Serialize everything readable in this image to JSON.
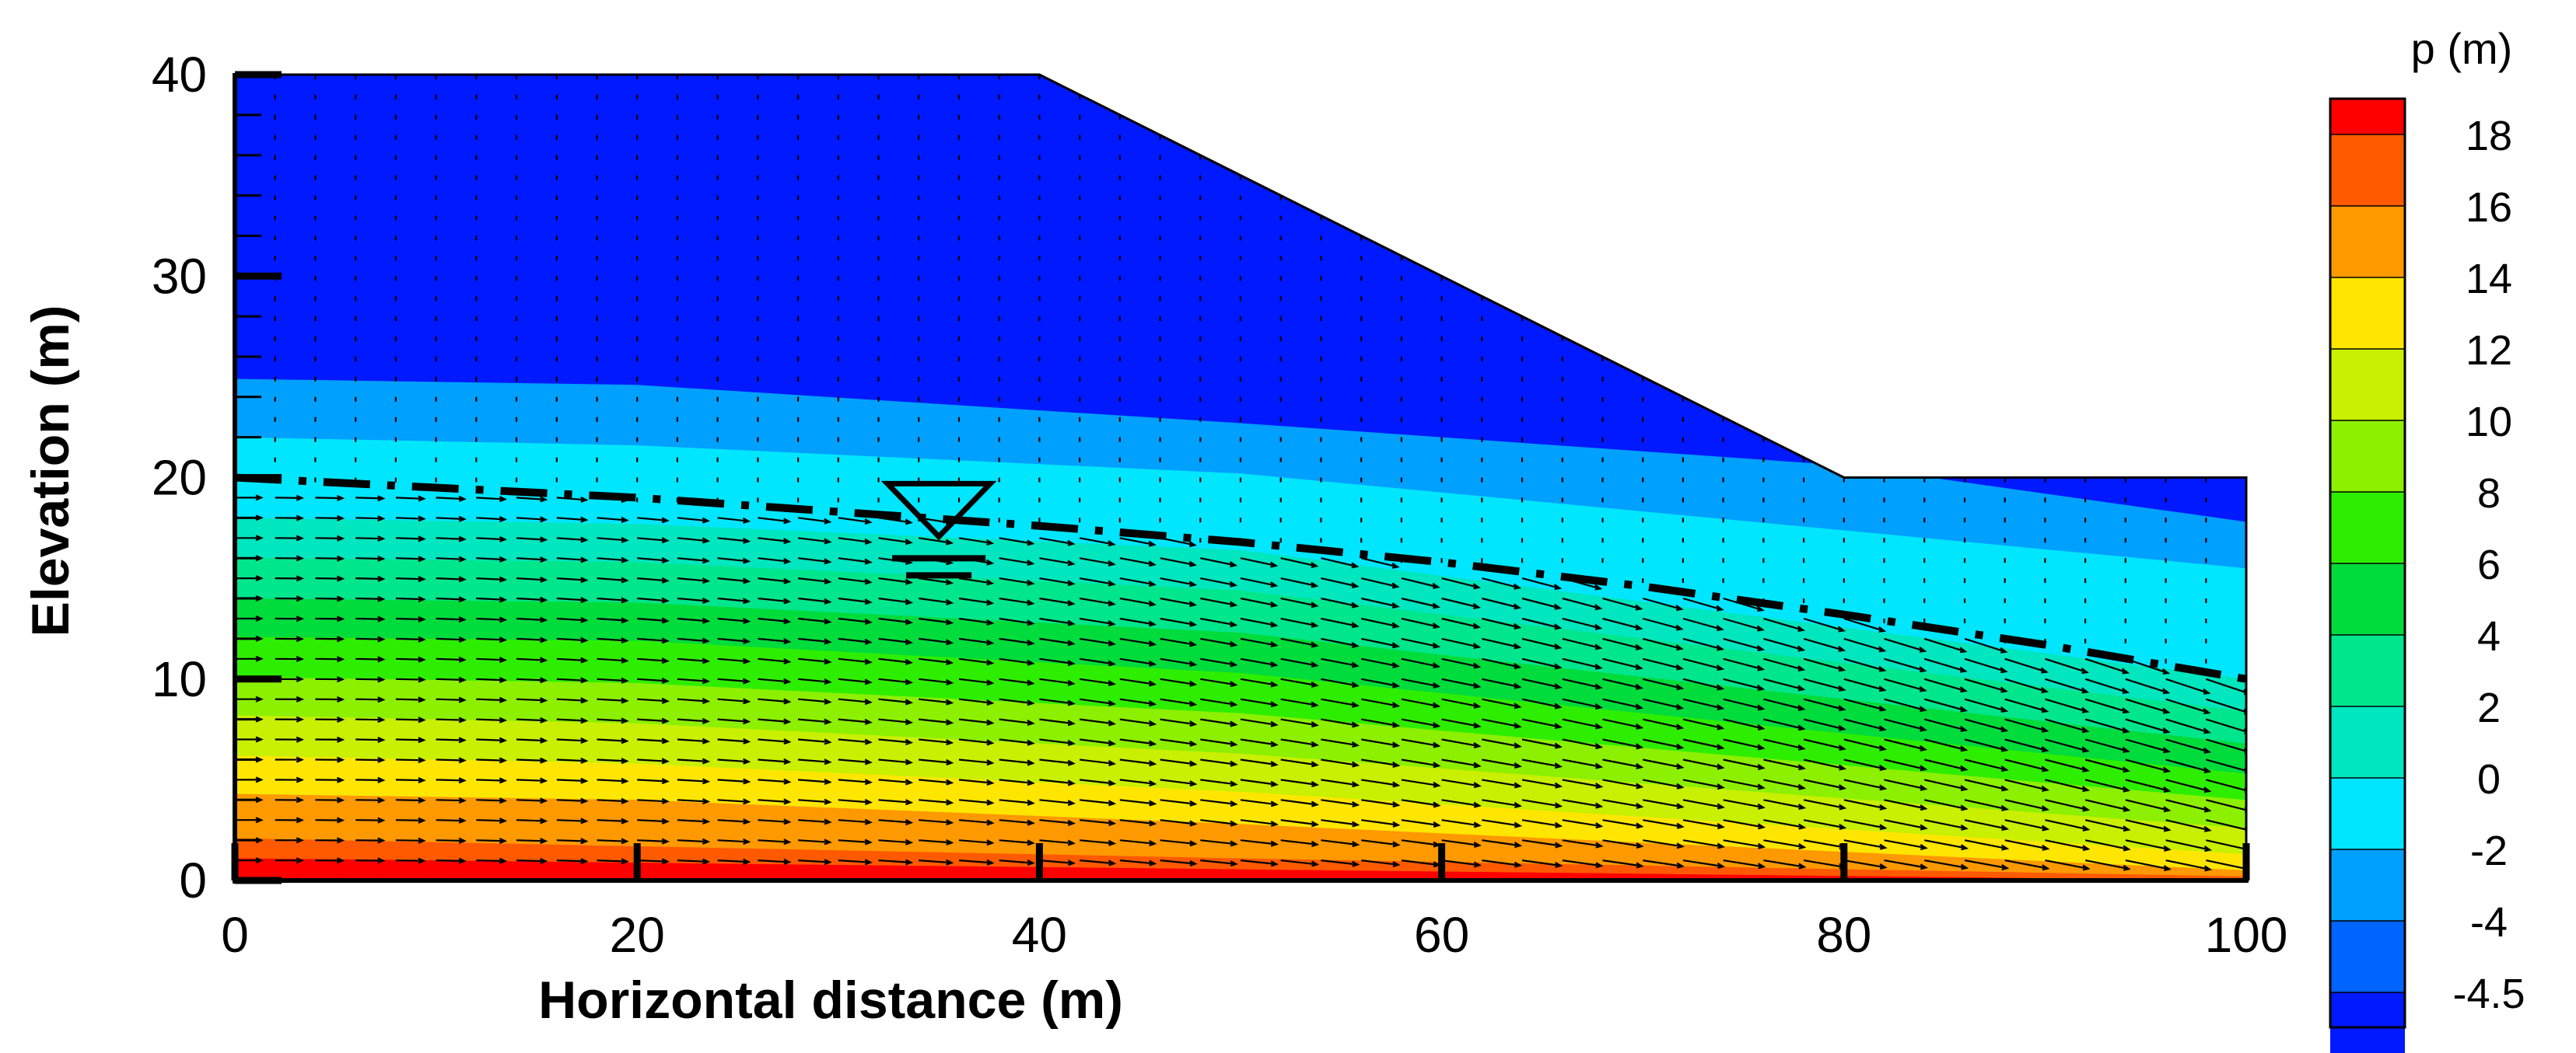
{
  "chart_data": {
    "type": "contour",
    "xlabel": "Horizontal distance (m)",
    "ylabel": "Elevation (m)",
    "xlim": [
      0,
      100
    ],
    "ylim": [
      0,
      40
    ],
    "xticks": [
      0,
      20,
      40,
      60,
      80,
      100
    ],
    "yticks": [
      0,
      10,
      20,
      30,
      40
    ],
    "domain_outline": [
      [
        0,
        0
      ],
      [
        100,
        0
      ],
      [
        100,
        20
      ],
      [
        80,
        20
      ],
      [
        40,
        40
      ],
      [
        0,
        40
      ]
    ],
    "water_table": [
      [
        0,
        20
      ],
      [
        10,
        19.5
      ],
      [
        20,
        19
      ],
      [
        30,
        18.3
      ],
      [
        40,
        17.6
      ],
      [
        50,
        16.8
      ],
      [
        60,
        15.8
      ],
      [
        70,
        14.6
      ],
      [
        80,
        13.2
      ],
      [
        90,
        11.7
      ],
      [
        100,
        10
      ]
    ],
    "water_table_symbol": {
      "x": 35,
      "y": 19
    },
    "colorbar": {
      "title": "p (m)",
      "position": "right",
      "tick_labels": [
        "18",
        "16",
        "14",
        "12",
        "10",
        "8",
        "6",
        "4",
        "2",
        "0",
        "-2",
        "-4",
        "-4.5"
      ],
      "tick_values": [
        18,
        16,
        14,
        12,
        10,
        8,
        6,
        4,
        2,
        0,
        -2,
        -4,
        -4.5
      ],
      "bands": [
        {
          "from": 18,
          "to": 19,
          "color": "#ff0000"
        },
        {
          "from": 16,
          "to": 18,
          "color": "#ff5a00"
        },
        {
          "from": 14,
          "to": 16,
          "color": "#ff9900"
        },
        {
          "from": 12,
          "to": 14,
          "color": "#ffe600"
        },
        {
          "from": 10,
          "to": 12,
          "color": "#c8f000"
        },
        {
          "from": 8,
          "to": 10,
          "color": "#8cf000"
        },
        {
          "from": 6,
          "to": 8,
          "color": "#2eee00"
        },
        {
          "from": 4,
          "to": 6,
          "color": "#00dc3c"
        },
        {
          "from": 2,
          "to": 4,
          "color": "#00e68c"
        },
        {
          "from": 0,
          "to": 2,
          "color": "#00e6be"
        },
        {
          "from": -2,
          "to": 0,
          "color": "#00e6ff"
        },
        {
          "from": -4,
          "to": -2,
          "color": "#00a0ff"
        },
        {
          "from": -4.5,
          "to": -4,
          "color": "#0064ff"
        },
        {
          "from": -5,
          "to": -4.5,
          "color": "#0019ff"
        }
      ]
    },
    "pressure_contours": [
      {
        "level": 18,
        "points": [
          [
            0,
            1.1
          ],
          [
            50,
            0.55
          ],
          [
            100,
            0
          ]
        ]
      },
      {
        "level": 16,
        "points": [
          [
            0,
            2.1
          ],
          [
            50,
            1.1
          ],
          [
            100,
            0.2
          ]
        ]
      },
      {
        "level": 14,
        "points": [
          [
            0,
            4.3
          ],
          [
            20,
            4.0
          ],
          [
            50,
            2.8
          ],
          [
            100,
            0.5
          ]
        ]
      },
      {
        "level": 12,
        "points": [
          [
            0,
            6.2
          ],
          [
            20,
            5.8
          ],
          [
            50,
            4.4
          ],
          [
            100,
            1.3
          ]
        ]
      },
      {
        "level": 10,
        "points": [
          [
            0,
            8.2
          ],
          [
            20,
            7.8
          ],
          [
            50,
            6.3
          ],
          [
            100,
            2.6
          ]
        ]
      },
      {
        "level": 8,
        "points": [
          [
            0,
            10.1
          ],
          [
            20,
            9.8
          ],
          [
            50,
            8.3
          ],
          [
            100,
            4.0
          ]
        ]
      },
      {
        "level": 6,
        "points": [
          [
            0,
            12.1
          ],
          [
            20,
            11.9
          ],
          [
            50,
            10.3
          ],
          [
            100,
            5.3
          ]
        ]
      },
      {
        "level": 4,
        "points": [
          [
            0,
            14.0
          ],
          [
            20,
            13.8
          ],
          [
            50,
            12.3
          ],
          [
            100,
            6.8
          ]
        ]
      },
      {
        "level": 2,
        "points": [
          [
            0,
            16.0
          ],
          [
            20,
            15.8
          ],
          [
            50,
            14.4
          ],
          [
            100,
            8.4
          ]
        ]
      },
      {
        "level": 0,
        "points": [
          [
            0,
            18.0
          ],
          [
            20,
            17.7
          ],
          [
            50,
            16.4
          ],
          [
            100,
            10.0
          ]
        ]
      },
      {
        "level": -2,
        "points": [
          [
            0,
            22.0
          ],
          [
            20,
            21.6
          ],
          [
            50,
            20.2
          ],
          [
            100,
            15.5
          ]
        ]
      },
      {
        "level": -4,
        "points": [
          [
            0,
            24.9
          ],
          [
            20,
            24.6
          ],
          [
            50,
            22.7
          ],
          [
            80,
            20.6
          ],
          [
            100,
            17.8
          ]
        ]
      },
      {
        "level": -4.5,
        "points": [
          [
            0,
            26.8
          ],
          [
            20,
            26.0
          ],
          [
            33,
            25.6
          ],
          [
            40,
            26.0
          ],
          [
            45,
            28.5
          ],
          [
            45,
            33
          ],
          [
            43,
            37
          ],
          [
            42,
            39.5
          ],
          [
            41,
            40
          ]
        ]
      }
    ]
  }
}
